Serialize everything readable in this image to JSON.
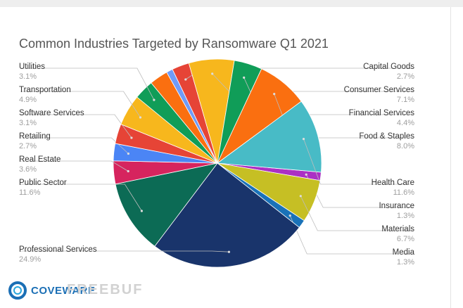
{
  "chart_data": {
    "type": "pie",
    "title": "Common Industries Targeted by Ransomware Q1 2021",
    "slices": [
      {
        "label": "Insurance",
        "value": 1.3,
        "pct_label": "1.3%",
        "color": "#ab30c4",
        "side": "right"
      },
      {
        "label": "Materials",
        "value": 6.7,
        "pct_label": "6.7%",
        "color": "#c6bf24",
        "side": "right"
      },
      {
        "label": "Media",
        "value": 1.3,
        "pct_label": "1.3%",
        "color": "#1a72b8",
        "side": "right"
      },
      {
        "label": "Professional Services",
        "value": 24.9,
        "pct_label": "24.9%",
        "color": "#19346b",
        "side": "left"
      },
      {
        "label": "Public Sector",
        "value": 11.6,
        "pct_label": "11.6%",
        "color": "#0c6b55",
        "side": "left"
      },
      {
        "label": "Real Estate",
        "value": 3.6,
        "pct_label": "3.6%",
        "color": "#d6245e",
        "side": "left"
      },
      {
        "label": "Retailing",
        "value": 2.7,
        "pct_label": "2.7%",
        "color": "#4b85f5",
        "side": "left"
      },
      {
        "label": "Software Services",
        "value": 3.1,
        "pct_label": "3.1%",
        "color": "#e64436",
        "side": "left"
      },
      {
        "label": "Transportation",
        "value": 4.9,
        "pct_label": "4.9%",
        "color": "#f7b71d",
        "side": "left"
      },
      {
        "label": "Utilities",
        "value": 3.1,
        "pct_label": "3.1%",
        "color": "#109d58",
        "side": "left"
      },
      {
        "label": "",
        "value": 2.9,
        "pct_label": "",
        "color": "#fa6f10",
        "side": "none"
      },
      {
        "label": "",
        "value": 1.0,
        "pct_label": "",
        "color": "#6f9bf8",
        "side": "none"
      },
      {
        "label": "Capital Goods",
        "value": 2.7,
        "pct_label": "2.7%",
        "color": "#e64436",
        "side": "right"
      },
      {
        "label": "Consumer Services",
        "value": 7.1,
        "pct_label": "7.1%",
        "color": "#f7b71d",
        "side": "right"
      },
      {
        "label": "Financial Services",
        "value": 4.4,
        "pct_label": "4.4%",
        "color": "#109d58",
        "side": "right"
      },
      {
        "label": "Food & Staples",
        "value": 8.0,
        "pct_label": "8.0%",
        "color": "#fa6f10",
        "side": "right"
      },
      {
        "label": "Health Care",
        "value": 11.6,
        "pct_label": "11.6%",
        "color": "#48bbc6",
        "side": "right"
      }
    ],
    "legend": "none",
    "grid": false
  },
  "branding": {
    "logo_text": "COVEWARE",
    "watermark": "FREEBUF"
  }
}
